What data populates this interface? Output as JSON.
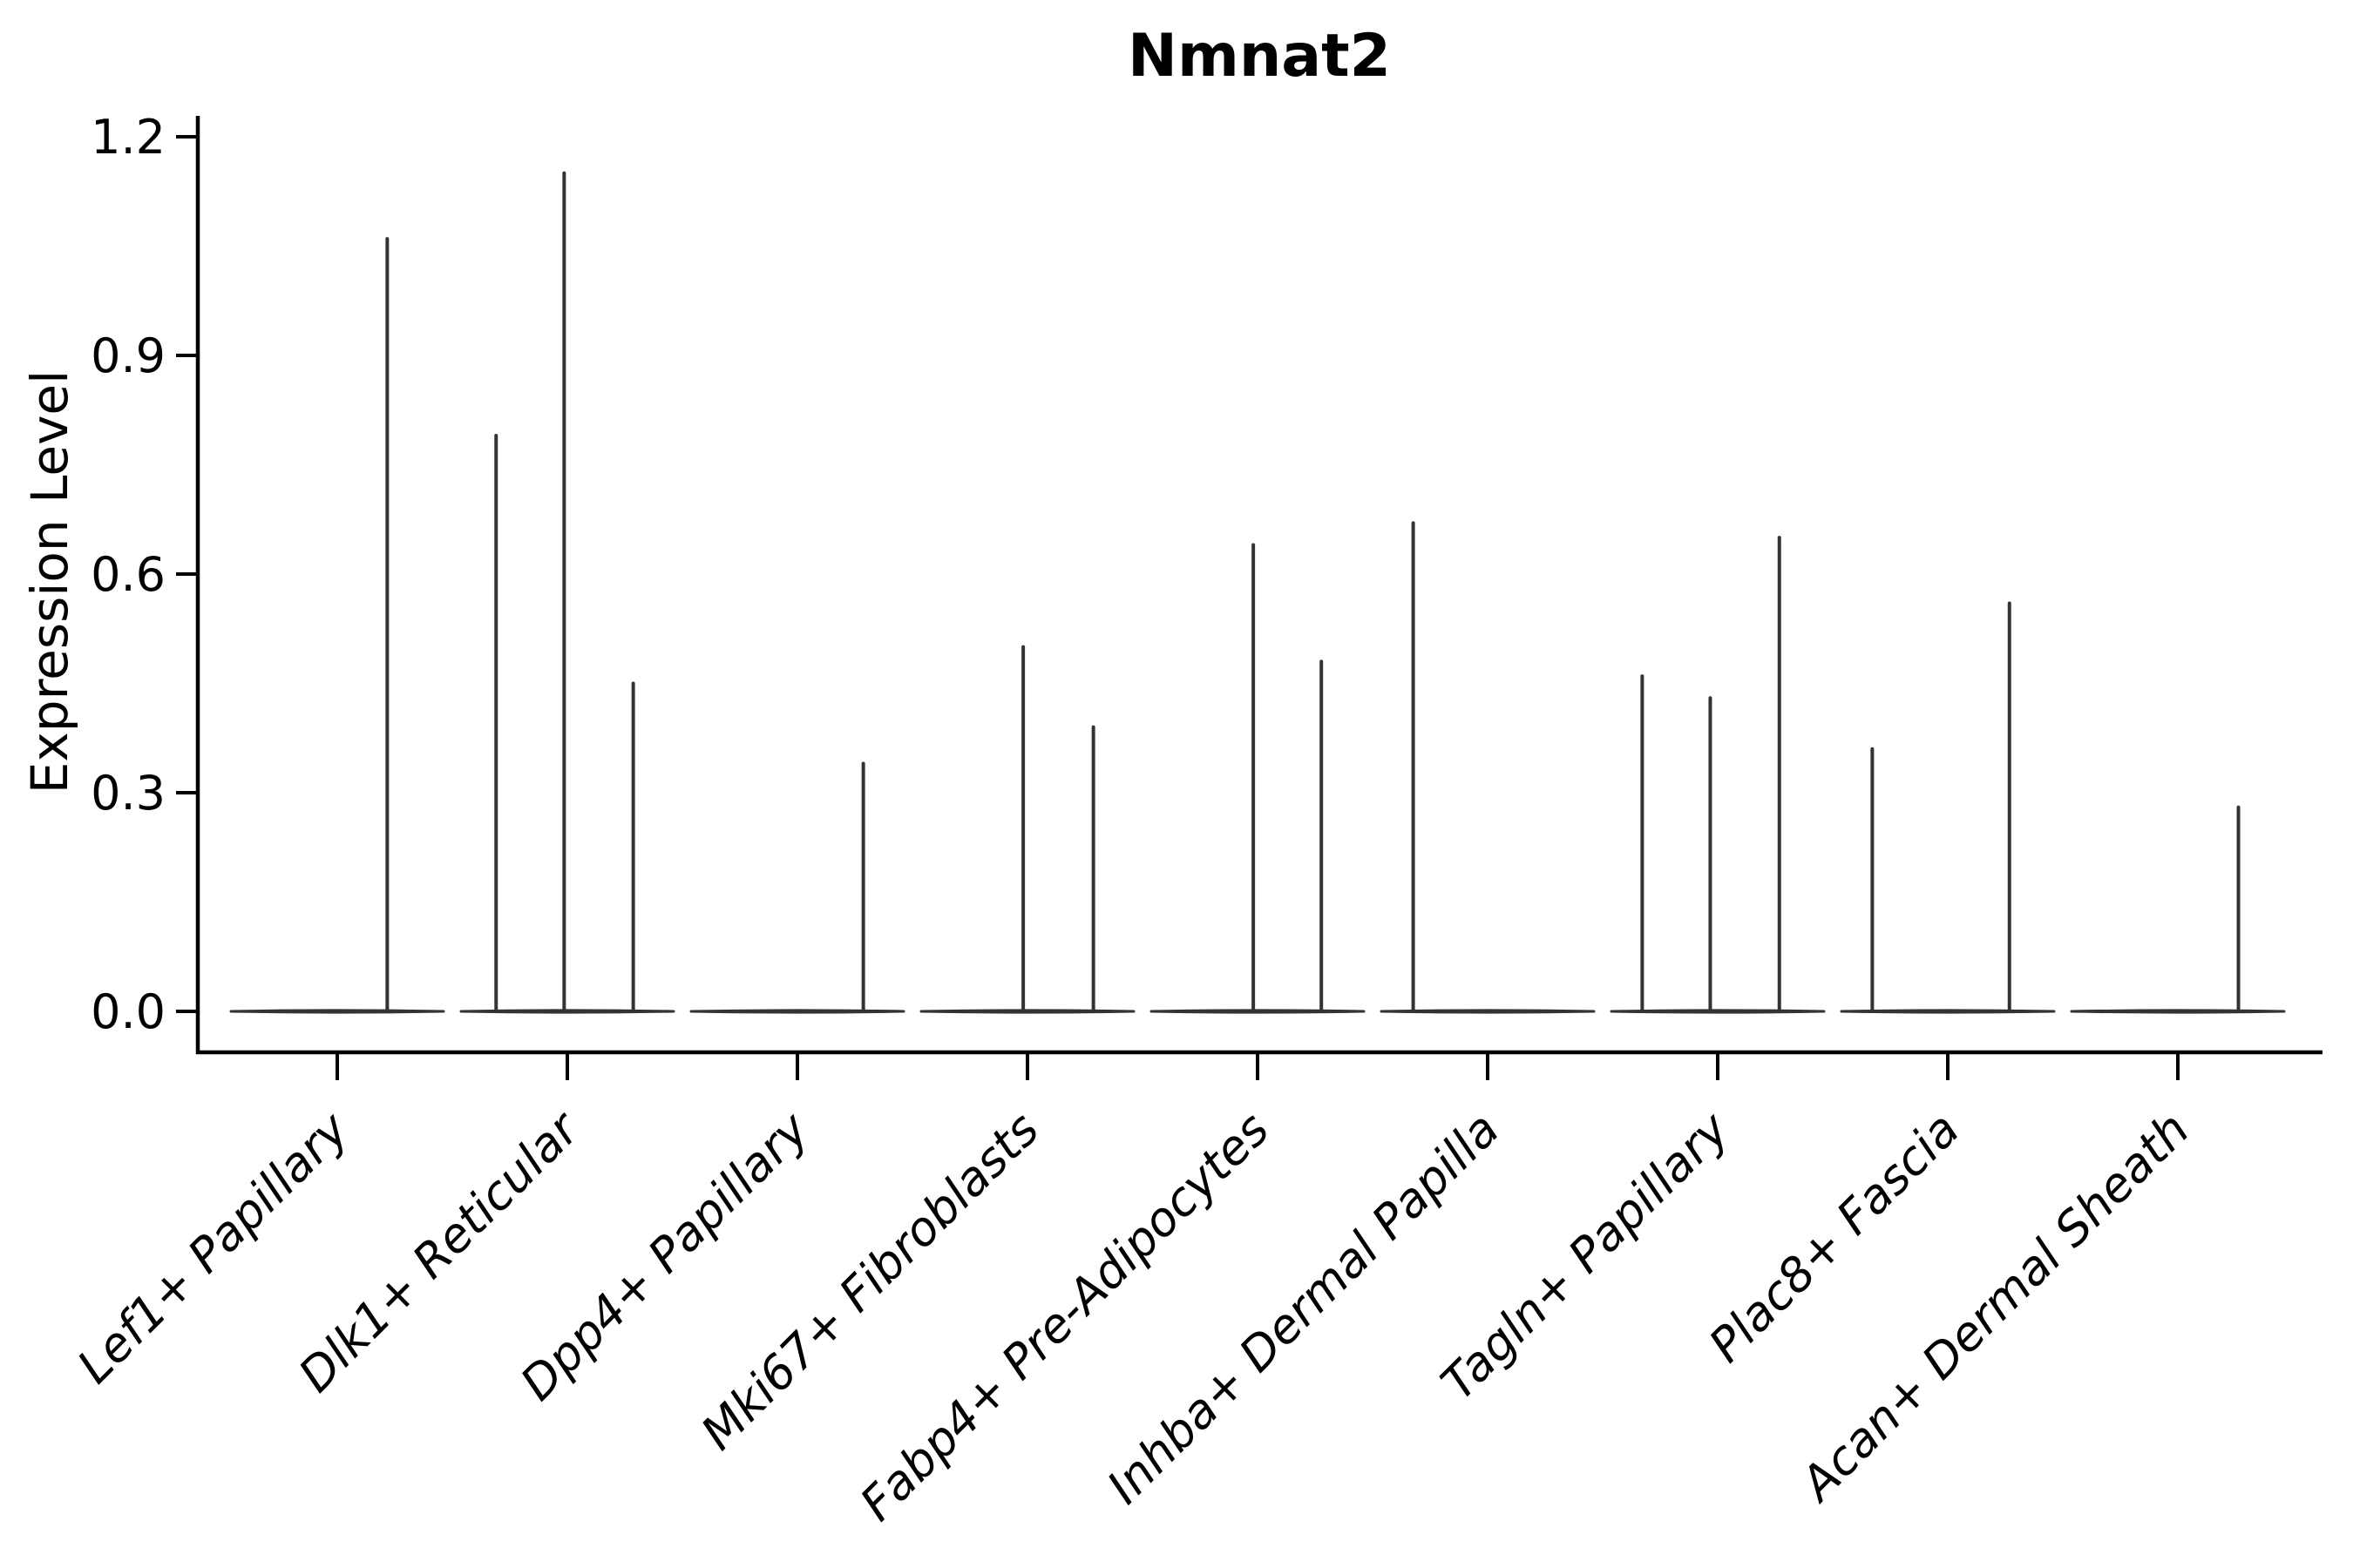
{
  "chart_data": {
    "type": "violin",
    "title": "Nmnat2",
    "ylabel": "Expression Level",
    "xlabel": "",
    "yticks": [
      0.0,
      0.3,
      0.6,
      0.9,
      1.2
    ],
    "ytick_labels": [
      "0.0",
      "0.3",
      "0.6",
      "0.9",
      "1.2"
    ],
    "ylim": [
      -0.06,
      1.23
    ],
    "grid": false,
    "legend": "none",
    "background": "#ffffff",
    "colors": {
      "violin": "#333333",
      "axis": "#000000",
      "text": "#000000"
    },
    "categories": [
      "Lef1+ Papillary",
      "Dlk1+ Reticular",
      "Dpp4+ Papillary",
      "Mki67+ Fibroblasts",
      "Fabp4+ Pre-Adipocytes",
      "Inhba+ Dermal Papilla",
      "Tagln+ Papillary",
      "Plac8+ Fascia",
      "Acan+ Dermal Sheath"
    ],
    "series": [
      {
        "category": "Lef1+ Papillary",
        "baseline_value": 0.0,
        "spikes": [
          {
            "offset": 0.47,
            "value": 1.06
          }
        ]
      },
      {
        "category": "Dlk1+ Reticular",
        "baseline_value": 0.0,
        "spikes": [
          {
            "offset": -0.67,
            "value": 0.79
          },
          {
            "offset": -0.03,
            "value": 1.15
          },
          {
            "offset": 0.62,
            "value": 0.45
          }
        ]
      },
      {
        "category": "Dpp4+ Papillary",
        "baseline_value": 0.0,
        "spikes": [
          {
            "offset": 0.62,
            "value": 0.34
          }
        ]
      },
      {
        "category": "Mki67+ Fibroblasts",
        "baseline_value": 0.0,
        "spikes": [
          {
            "offset": -0.04,
            "value": 0.5
          },
          {
            "offset": 0.62,
            "value": 0.39
          }
        ]
      },
      {
        "category": "Fabp4+ Pre-Adipocytes",
        "baseline_value": 0.0,
        "spikes": [
          {
            "offset": -0.04,
            "value": 0.64
          },
          {
            "offset": 0.6,
            "value": 0.48
          }
        ]
      },
      {
        "category": "Inhba+ Dermal Papilla",
        "baseline_value": 0.0,
        "spikes": [
          {
            "offset": -0.7,
            "value": 0.67
          }
        ]
      },
      {
        "category": "Tagln+ Papillary",
        "baseline_value": 0.0,
        "spikes": [
          {
            "offset": -0.71,
            "value": 0.46
          },
          {
            "offset": -0.07,
            "value": 0.43
          },
          {
            "offset": 0.58,
            "value": 0.65
          }
        ]
      },
      {
        "category": "Plac8+ Fascia",
        "baseline_value": 0.0,
        "spikes": [
          {
            "offset": -0.71,
            "value": 0.36
          },
          {
            "offset": 0.58,
            "value": 0.56
          }
        ]
      },
      {
        "category": "Acan+ Dermal Sheath",
        "baseline_value": 0.0,
        "spikes": [
          {
            "offset": 0.57,
            "value": 0.28
          }
        ]
      }
    ]
  }
}
